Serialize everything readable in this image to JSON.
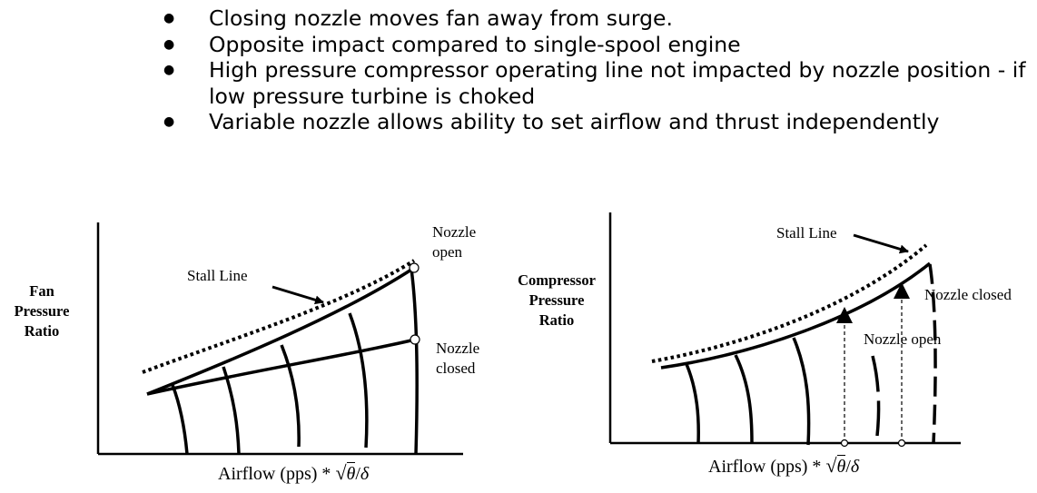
{
  "bullets": [
    "Closing nozzle moves fan away from surge.",
    "Opposite impact compared to single-spool engine",
    "High pressure compressor operating line not impacted by nozzle position - if low pressure turbine is choked",
    "Variable nozzle allows ability to set airflow and thrust independently"
  ],
  "fan_chart": {
    "y_label_lines": [
      "Fan",
      "Pressure",
      "Ratio"
    ],
    "x_label_prefix": "Airflow (pps) * ",
    "x_label_radical": "√",
    "x_label_theta": "θ",
    "x_label_slash": "/",
    "x_label_delta": "δ",
    "stall_line_label": "Stall Line",
    "nozzle_open_lines": [
      "Nozzle",
      "open"
    ],
    "nozzle_closed_lines": [
      "Nozzle",
      "closed"
    ]
  },
  "compressor_chart": {
    "y_label_lines": [
      "Compressor",
      "Pressure",
      "Ratio"
    ],
    "x_label_prefix": "Airflow (pps) * ",
    "x_label_radical": "√",
    "x_label_theta": "θ",
    "x_label_slash": "/",
    "x_label_delta": "δ",
    "stall_line_label": "Stall Line",
    "nozzle_closed_label": "Nozzle closed",
    "nozzle_open_label": "Nozzle open"
  }
}
